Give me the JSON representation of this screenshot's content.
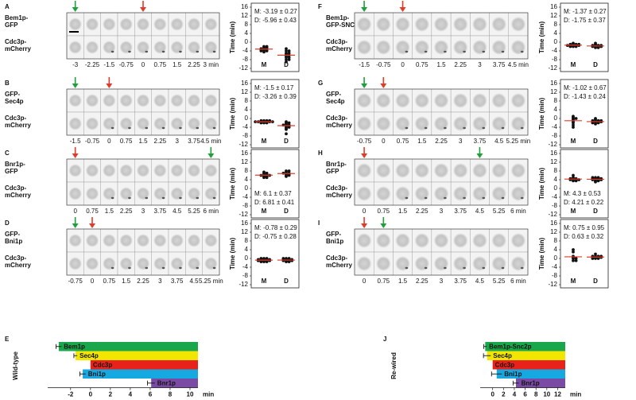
{
  "panels": [
    {
      "letter": "A",
      "top_label": [
        "Bem1p-",
        "GFP"
      ],
      "bottom_label": [
        "Cdc3p-",
        "mCherry"
      ],
      "times": [
        "-3",
        "-2.25",
        "-1.5",
        "-0.75",
        "0",
        "0.75",
        "1.5",
        "2.25",
        "3 min"
      ]
    },
    {
      "letter": "B",
      "top_label": [
        "GFP-",
        "Sec4p"
      ],
      "bottom_label": [
        "Cdc3p-",
        "mCherry"
      ],
      "times": [
        "-1.5",
        "-0.75",
        "0",
        "0.75",
        "1.5",
        "2.25",
        "3",
        "3.75",
        "4.5 min"
      ]
    },
    {
      "letter": "C",
      "top_label": [
        "Bnr1p-",
        "GFP"
      ],
      "bottom_label": [
        "Cdc3p-",
        "mCherry"
      ],
      "times": [
        "0",
        "0.75",
        "1.5",
        "2.25",
        "3",
        "3.75",
        "4.5",
        "5.25",
        "6 min"
      ]
    },
    {
      "letter": "D",
      "top_label": [
        "GFP-",
        "Bni1p"
      ],
      "bottom_label": [
        "Cdc3p-",
        "mCherry"
      ],
      "times": [
        "-0.75",
        "0",
        "0.75",
        "1.5",
        "2.25",
        "3",
        "3.75",
        "4.5",
        "5.25 min"
      ]
    },
    {
      "letter": "F",
      "top_label": [
        "Bem1p-",
        "GFP-SNC2"
      ],
      "bottom_label": [
        "Cdc3p-",
        "mCherry"
      ],
      "times": [
        "-1.5",
        "-0.75",
        "0",
        "0.75",
        "1.5",
        "2.25",
        "3",
        "3.75",
        "4.5 min"
      ]
    },
    {
      "letter": "G",
      "top_label": [
        "GFP-",
        "Sec4p"
      ],
      "bottom_label": [
        "Cdc3p-",
        "mCherry"
      ],
      "times": [
        "-0.75",
        "0",
        "0.75",
        "1.5",
        "2.25",
        "3",
        "3.75",
        "4.5",
        "5.25 min"
      ]
    },
    {
      "letter": "H",
      "top_label": [
        "Bnr1p-",
        "GFP"
      ],
      "bottom_label": [
        "Cdc3p-",
        "mCherry"
      ],
      "times": [
        "0",
        "0.75",
        "1.5",
        "2.25",
        "3",
        "3.75",
        "4.5",
        "5.25",
        "6 min"
      ]
    },
    {
      "letter": "I",
      "top_label": [
        "GFP-",
        "Bni1p"
      ],
      "bottom_label": [
        "Cdc3p-",
        "mCherry"
      ],
      "times": [
        "0",
        "0.75",
        "1.5",
        "2.25",
        "3",
        "3.75",
        "4.5",
        "5.25",
        "6 min"
      ]
    }
  ],
  "chart_data": [
    {
      "type": "strip",
      "ylabel": "Time (min)",
      "ylim": [
        -12,
        16
      ],
      "yticks": [
        16,
        12,
        8,
        4,
        0,
        -4,
        -8,
        -12
      ],
      "color": "#111111",
      "mean_color": "#e23b2a",
      "means": [
        -3.19,
        -5.96
      ],
      "mean_labels": [
        "M: -3.19 ± 0.27",
        "D: -5.96 ± 0.43"
      ],
      "series": [
        {
          "name": "M",
          "values": [
            -2,
            -2.5,
            -2.5,
            -3,
            -3,
            -3,
            -3.5,
            -3.5,
            -4,
            -4,
            -4.5,
            -2,
            -3.5,
            -4
          ]
        },
        {
          "name": "D",
          "values": [
            -3,
            -4,
            -4,
            -5,
            -5,
            -5.5,
            -6,
            -6,
            -6.5,
            -7,
            -7,
            -8,
            -8,
            -9
          ]
        }
      ]
    },
    {
      "type": "strip",
      "ylabel": "Time (min)",
      "ylim": [
        -12,
        16
      ],
      "yticks": [
        16,
        12,
        8,
        4,
        0,
        -4,
        -8,
        -12
      ],
      "color": "#111111",
      "mean_color": "#e23b2a",
      "means": [
        -1.5,
        -3.26
      ],
      "mean_labels": [
        "M: -1.5 ± 0.17",
        "D: -3.26 ± 0.39"
      ],
      "series": [
        {
          "name": "M",
          "values": [
            -1,
            -1,
            -1.5,
            -1.5,
            -1.5,
            -1.5,
            -2,
            -2,
            -1,
            -1.5,
            -2,
            -1.5,
            -1.5,
            -1
          ]
        },
        {
          "name": "D",
          "values": [
            -1.5,
            -2,
            -2,
            -2.5,
            -3,
            -3,
            -3,
            -3.5,
            -3.5,
            -4,
            -4,
            -4.5,
            -5,
            -7
          ]
        }
      ]
    },
    {
      "type": "strip",
      "ylabel": "Time (min)",
      "ylim": [
        -12,
        16
      ],
      "yticks": [
        16,
        12,
        8,
        4,
        0,
        -4,
        -8,
        -12
      ],
      "color": "#111111",
      "mean_color": "#e23b2a",
      "means": [
        6.1,
        6.81
      ],
      "mean_labels": [
        "M: 6.1 ± 0.37",
        "D: 6.81 ± 0.41"
      ],
      "series": [
        {
          "name": "M",
          "values": [
            5,
            5.5,
            5.5,
            6,
            6,
            6,
            6.5,
            6.5,
            7,
            7,
            7.5,
            5,
            6
          ]
        },
        {
          "name": "D",
          "values": [
            5.5,
            6,
            6,
            6.5,
            7,
            7,
            7,
            7.5,
            8,
            8,
            6.5
          ]
        }
      ]
    },
    {
      "type": "strip",
      "ylabel": "Time (min)",
      "ylim": [
        -12,
        16
      ],
      "yticks": [
        16,
        12,
        8,
        4,
        0,
        -4,
        -8,
        -12
      ],
      "color": "#111111",
      "mean_color": "#e23b2a",
      "means": [
        -0.78,
        -0.75
      ],
      "mean_labels": [
        "M: -0.78 ± 0.29",
        "D: -0.75 ± 0.28"
      ],
      "series": [
        {
          "name": "M",
          "values": [
            0,
            0,
            -0.5,
            -0.5,
            -0.5,
            -1,
            -1,
            -1,
            -1.5,
            -1.5,
            -0.5,
            -1,
            0,
            -1,
            -1.5,
            -0.5
          ]
        },
        {
          "name": "D",
          "values": [
            0,
            0,
            0,
            -0.5,
            -0.5,
            -1,
            -1,
            -1,
            -1.5,
            -1.5,
            -0.5,
            -1,
            -0.5
          ]
        }
      ]
    },
    {
      "type": "strip",
      "ylabel": "Time (min)",
      "ylim": [
        -12,
        16
      ],
      "yticks": [
        16,
        12,
        8,
        4,
        0,
        -4,
        -8,
        -12
      ],
      "color": "#111111",
      "mean_color": "#e23b2a",
      "means": [
        -1.37,
        -1.75
      ],
      "mean_labels": [
        "M: -1.37 ± 0.27",
        "D: -1.75 ± 0.37"
      ],
      "series": [
        {
          "name": "M",
          "values": [
            -0.5,
            -1,
            -1,
            -1,
            -1.5,
            -1.5,
            -1.5,
            -1.5,
            -2,
            -2,
            -1,
            -1.5,
            -2
          ]
        },
        {
          "name": "D",
          "values": [
            -0.5,
            -1,
            -1.5,
            -1.5,
            -1.5,
            -2,
            -2,
            -2,
            -2.5,
            -2.5,
            -1.5,
            -2
          ]
        }
      ]
    },
    {
      "type": "strip",
      "ylabel": "Time (min)",
      "ylim": [
        -12,
        16
      ],
      "yticks": [
        16,
        12,
        8,
        4,
        0,
        -4,
        -8,
        -12
      ],
      "color": "#111111",
      "mean_color": "#e23b2a",
      "means": [
        -1.02,
        -1.43
      ],
      "mean_labels": [
        "M: -1.02 ± 0.67",
        "D: -1.43 ± 0.24"
      ],
      "series": [
        {
          "name": "M",
          "values": [
            1,
            0.5,
            0,
            0,
            -0.5,
            -1,
            -1.5,
            -2,
            -3,
            -4
          ]
        },
        {
          "name": "D",
          "values": [
            0,
            -0.5,
            -1,
            -1,
            -1,
            -1.5,
            -1.5,
            -1.5,
            -2,
            -2,
            -2,
            -2.5,
            -1,
            -1.5
          ]
        }
      ]
    },
    {
      "type": "strip",
      "ylabel": "Time (min)",
      "ylim": [
        -12,
        16
      ],
      "yticks": [
        16,
        12,
        8,
        4,
        0,
        -4,
        -8,
        -12
      ],
      "color": "#111111",
      "mean_color": "#e23b2a",
      "means": [
        4.3,
        4.21
      ],
      "mean_labels": [
        "M: 4.3 ± 0.53",
        "D: 4.21 ± 0.22"
      ],
      "series": [
        {
          "name": "M",
          "values": [
            6,
            5,
            4.5,
            4,
            4,
            4,
            3.5,
            3.5,
            4,
            4.5,
            4.5
          ]
        },
        {
          "name": "D",
          "values": [
            3,
            3.5,
            4,
            4,
            4,
            4.5,
            4.5,
            4.5,
            5,
            5,
            4,
            4.5,
            5,
            3.5
          ]
        }
      ]
    },
    {
      "type": "strip",
      "ylabel": "Time (min)",
      "ylim": [
        -12,
        16
      ],
      "yticks": [
        16,
        12,
        8,
        4,
        0,
        -4,
        -8,
        -12
      ],
      "color": "#111111",
      "mean_color": "#e23b2a",
      "means": [
        0.75,
        0.63
      ],
      "mean_labels": [
        "M: 0.75 ± 0.95",
        "D: 0.63 ± 0.32"
      ],
      "series": [
        {
          "name": "M",
          "values": [
            4,
            3,
            1,
            0,
            0,
            -1,
            -1,
            0.5
          ]
        },
        {
          "name": "D",
          "values": [
            2,
            1,
            1,
            1,
            0.5,
            0.5,
            0,
            0,
            0,
            0.5,
            1,
            0.5
          ]
        }
      ]
    },
    {
      "type": "timeline",
      "letter": "E",
      "ylabel": "Wild-type",
      "xlabel": "min",
      "xlim": [
        -4.3,
        10.8
      ],
      "xticks": [
        -2,
        0,
        2,
        4,
        6,
        8,
        10
      ],
      "categories": [
        "Bem1p",
        "Sec4p",
        "Cdc3p",
        "Bni1p",
        "Bnr1p"
      ],
      "values": [
        -3.19,
        -1.5,
        0,
        -0.78,
        6.1
      ],
      "errors": [
        0.27,
        0.17,
        null,
        0.29,
        0.37
      ],
      "colors": [
        "#1aa64a",
        "#f2e600",
        "#e8221b",
        "#16a9e1",
        "#7b4aa4"
      ],
      "label_colors": [
        "#111111",
        "#111111",
        "#ffffff",
        "#ffffff",
        "#ffffff"
      ]
    },
    {
      "type": "timeline",
      "letter": "J",
      "ylabel": "Re-wired",
      "xlabel": "min",
      "xlim": [
        -2.3,
        13.4
      ],
      "xticks": [
        0,
        2,
        4,
        6,
        8,
        10,
        12
      ],
      "categories": [
        "Bem1p-Snc2p",
        "Sec4p",
        "Cdc3p",
        "Bni1p",
        "Bnr1p"
      ],
      "values": [
        -1.37,
        -1.02,
        0,
        0.75,
        4.3
      ],
      "errors": [
        0.27,
        0.67,
        null,
        0.95,
        0.53
      ],
      "colors": [
        "#1aa64a",
        "#f2e600",
        "#e8221b",
        "#16a9e1",
        "#7b4aa4"
      ],
      "label_colors": [
        "#111111",
        "#111111",
        "#ffffff",
        "#ffffff",
        "#ffffff"
      ]
    }
  ]
}
